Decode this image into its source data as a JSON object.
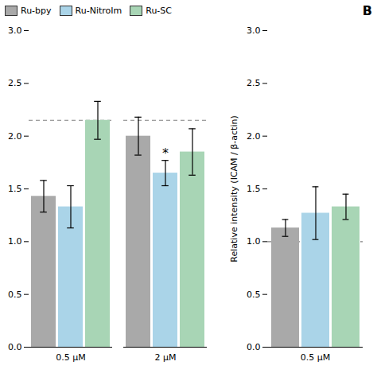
{
  "chart_data": [
    {
      "type": "bar",
      "categories": [
        "0.5 μM",
        "2 μM"
      ],
      "series": [
        {
          "name": "Ru-bpy",
          "color": "#a9a9a9",
          "values": [
            1.43,
            2.0
          ],
          "errors": [
            0.15,
            0.18
          ]
        },
        {
          "name": "Ru-NitroIm",
          "color": "#aad4e8",
          "values": [
            1.33,
            1.65
          ],
          "errors": [
            0.2,
            0.12
          ]
        },
        {
          "name": "Ru-SC",
          "color": "#a8d5b5",
          "values": [
            2.15,
            1.85
          ],
          "errors": [
            0.18,
            0.22
          ]
        }
      ],
      "hline": 2.15,
      "ylim": [
        0,
        3.0
      ],
      "yticks": [
        {
          "value": 0,
          "label": "0.0"
        },
        {
          "value": 0.5,
          "label": "0.5"
        },
        {
          "value": 1.0,
          "label": "1.0"
        },
        {
          "value": 1.5,
          "label": "1.5"
        },
        {
          "value": 2.0,
          "label": "2.0"
        },
        {
          "value": 2.5,
          "label": "2.5"
        },
        {
          "value": 3.0,
          "label": "3.0"
        }
      ],
      "legend": "upper left",
      "annotations": [
        {
          "text": "*",
          "category": "2 μM",
          "series": "Ru-NitroIm"
        }
      ]
    },
    {
      "type": "bar",
      "title": "B",
      "categories": [
        "0.5 μM"
      ],
      "series": [
        {
          "name": "Ru-bpy",
          "color": "#a9a9a9",
          "values": [
            1.13
          ],
          "errors": [
            0.08
          ]
        },
        {
          "name": "Ru-NitroIm",
          "color": "#aad4e8",
          "values": [
            1.27
          ],
          "errors": [
            0.25
          ]
        },
        {
          "name": "Ru-SC",
          "color": "#a8d5b5",
          "values": [
            1.33
          ],
          "errors": [
            0.12
          ]
        }
      ],
      "hline": 1.0,
      "ylim": [
        0,
        3.0
      ],
      "yticks": [
        {
          "value": 0,
          "label": "0.0"
        },
        {
          "value": 0.5,
          "label": "0.5"
        },
        {
          "value": 1.0,
          "label": "1.0"
        },
        {
          "value": 1.5,
          "label": "1.5"
        },
        {
          "value": 2.0,
          "label": "2.0"
        },
        {
          "value": 2.5,
          "label": "2.5"
        },
        {
          "value": 3.0,
          "label": "3.0"
        }
      ],
      "ylabel": "Relative intensity (ICAM / β-actin)"
    }
  ]
}
